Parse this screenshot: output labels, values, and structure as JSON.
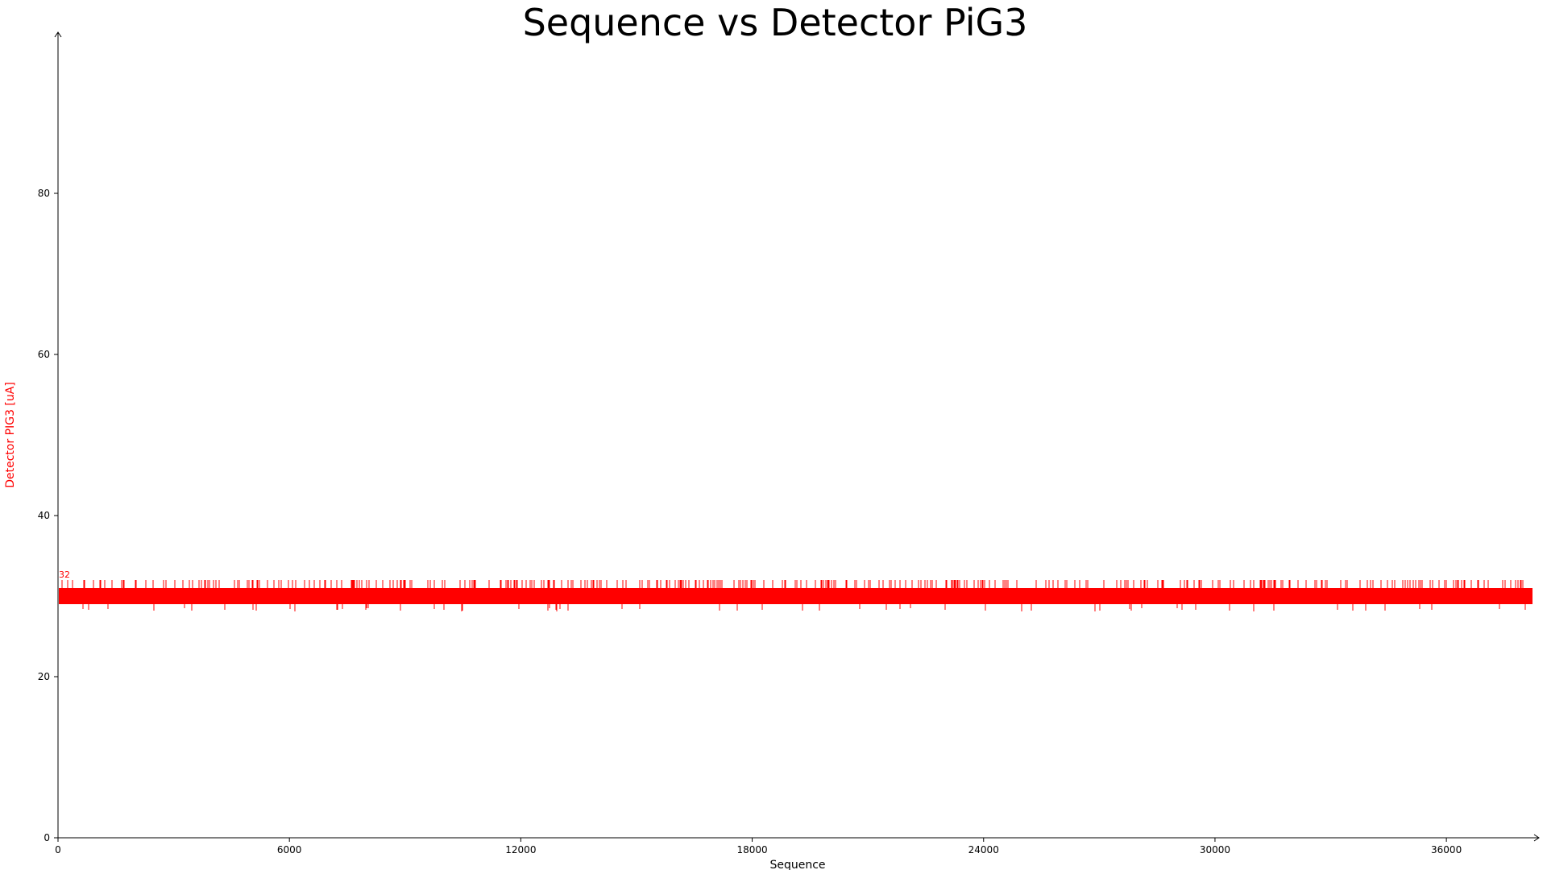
{
  "chart_data": {
    "type": "line",
    "title": "Sequence vs Detector PiG3",
    "xlabel": "Sequence",
    "ylabel": "Detector PIG3 [uA]",
    "xlim": [
      0,
      38400
    ],
    "ylim": [
      0,
      100
    ],
    "x_ticks": [
      "0",
      "6000",
      "12000",
      "18000",
      "24000",
      "30000",
      "36000"
    ],
    "y_ticks": [
      "0",
      "20",
      "40",
      "60",
      "80"
    ],
    "grid": false,
    "series": [
      {
        "name": "",
        "color": "#ff0000",
        "baseline_min": 29,
        "baseline_max": 31,
        "max_value": 32,
        "min_value": 28,
        "n_points": 38400
      }
    ],
    "annotations": [
      {
        "text": "32",
        "x": 0,
        "y": 32
      }
    ]
  },
  "colors": {
    "series": "#ff0000",
    "axis": "#000000",
    "ylabel": "#ff0000"
  }
}
